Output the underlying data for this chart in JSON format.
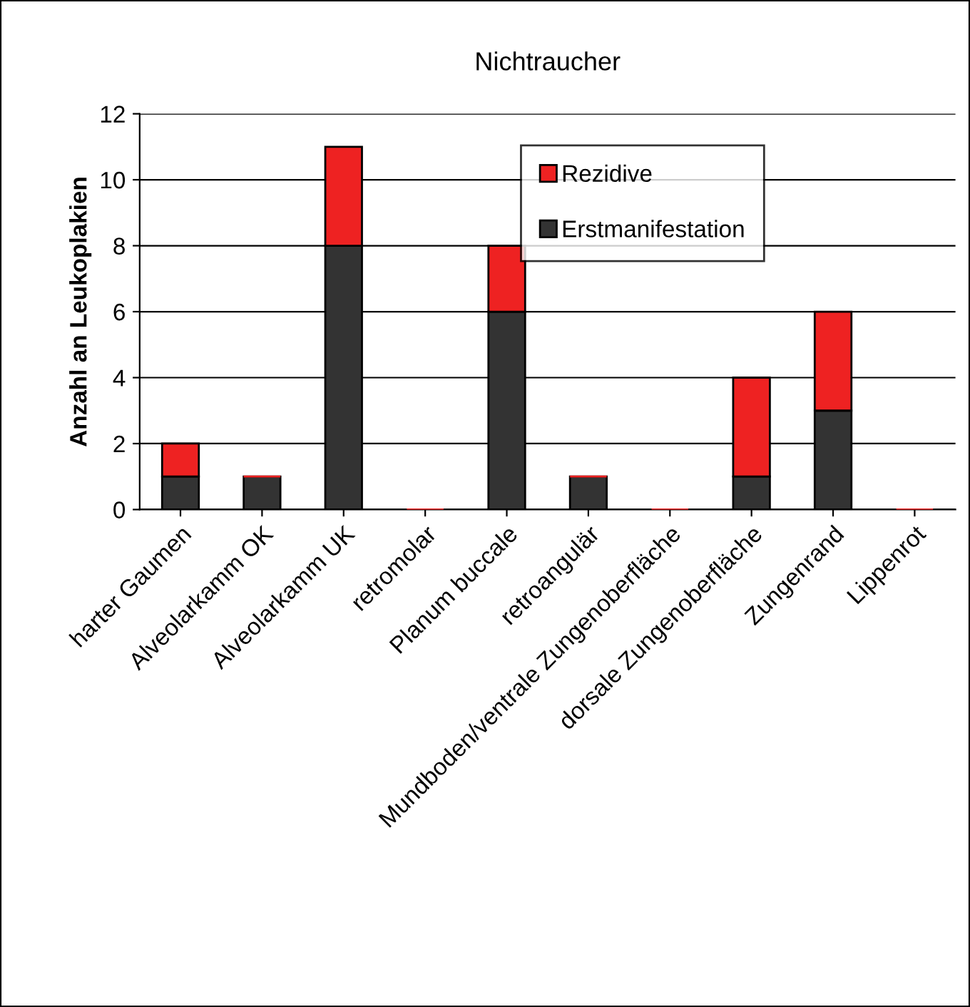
{
  "chart_data": {
    "type": "bar",
    "title": "Nichtraucher",
    "ylabel": "Anzahl an Leukoplakien",
    "categories": [
      "harter Gaumen",
      "Alveolarkamm OK",
      "Alveolarkamm UK",
      "retromolar",
      "Planum buccale",
      "retroangulär",
      "Mundboden/ventrale Zungenoberfläche",
      "dorsale Zungenoberfläche",
      "Zungenrand",
      "Lippenrot"
    ],
    "stacked": true,
    "series": [
      {
        "name": "Erstmanifestation",
        "color": "#333333",
        "values": [
          1,
          1,
          8,
          0,
          6,
          1,
          0,
          1,
          3,
          0
        ]
      },
      {
        "name": "Rezidive",
        "color": "#ee2222",
        "values": [
          1,
          0,
          3,
          0,
          2,
          0,
          0,
          3,
          3,
          0
        ]
      }
    ],
    "ylim": [
      0,
      12
    ],
    "yticks": [
      0,
      2,
      4,
      6,
      8,
      10,
      12
    ],
    "grid": "y",
    "legend": "top right"
  }
}
